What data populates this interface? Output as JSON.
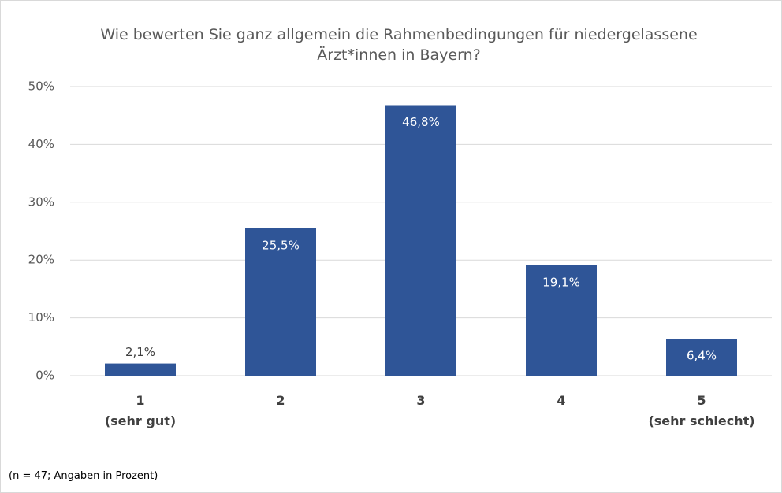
{
  "chart_data": {
    "type": "bar",
    "title": "Wie bewerten Sie ganz allgemein die Rahmenbedingungen für niedergelassene Ärzt*innen in Bayern?",
    "categories": [
      "1\n(sehr gut)",
      "2",
      "3",
      "4",
      "5\n(sehr schlecht)"
    ],
    "values": [
      2.1,
      25.5,
      46.8,
      19.1,
      6.4
    ],
    "value_labels": [
      "2,1%",
      "25,5%",
      "46,8%",
      "19,1%",
      "6,4%"
    ],
    "color": "#2f5597",
    "ylim": [
      0,
      50
    ],
    "yticks": [
      {
        "value": 0,
        "label": "0%"
      },
      {
        "value": 10,
        "label": "10%"
      },
      {
        "value": 20,
        "label": "20%"
      },
      {
        "value": 30,
        "label": "30%"
      },
      {
        "value": 40,
        "label": "40%"
      },
      {
        "value": 50,
        "label": "50%"
      }
    ],
    "grid": true,
    "footnote": "(n = 47; Angaben in Prozent)"
  }
}
